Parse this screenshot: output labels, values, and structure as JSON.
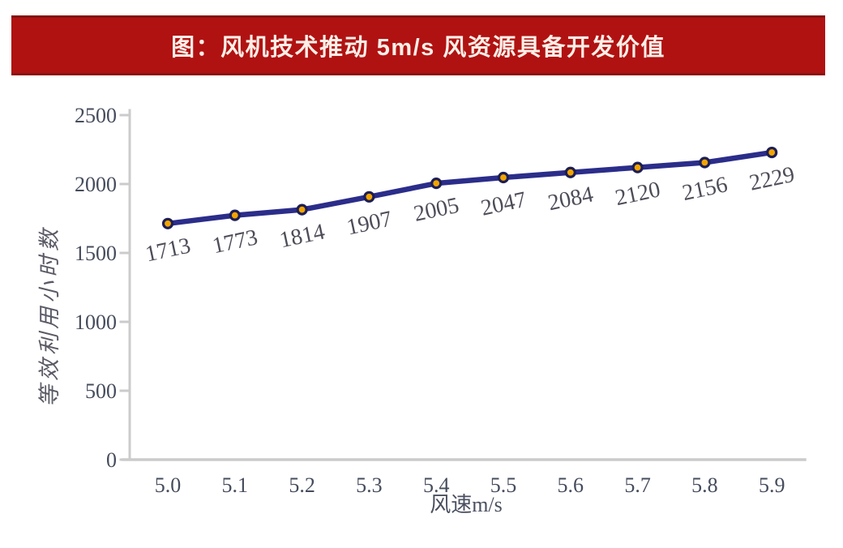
{
  "banner": {
    "title": "图：风机技术推动 5m/s 风资源具备开发价值",
    "bg_color": "#B01212",
    "border_top_color": "#871010",
    "border_bottom_color": "#8E1111",
    "text_color": "#FDEFE7"
  },
  "chart_data": {
    "type": "line",
    "title": "图：风机技术推动 5m/s 风资源具备开发价值",
    "categories": [
      "5.0",
      "5.1",
      "5.2",
      "5.3",
      "5.4",
      "5.5",
      "5.6",
      "5.7",
      "5.8",
      "5.9"
    ],
    "series": [
      {
        "name": "等效利用小时数",
        "values": [
          1713,
          1773,
          1814,
          1907,
          2005,
          2047,
          2084,
          2120,
          2156,
          2229
        ]
      }
    ],
    "data_labels": [
      "1713",
      "1773",
      "1814",
      "1907",
      "2005",
      "2047",
      "2084",
      "2120",
      "2156",
      "2229"
    ],
    "xlabel": "风速m/s",
    "ylabel": "等效利用小时数",
    "ylim": [
      0,
      2500
    ],
    "yticks": [
      0,
      500,
      1000,
      1500,
      2000,
      2500
    ],
    "grid": false,
    "legend_position": "none",
    "colors": {
      "line": "#2B2D8A",
      "marker_fill": "#F2A400",
      "marker_stroke": "#1C1E55",
      "axis": "#CBCBCB",
      "tick_label": "#454C5C",
      "axis_title": "#4A5060",
      "ylabel_text": "#5A5A66",
      "data_label": "#4D4D59"
    },
    "data_label_rotation_deg": -12
  }
}
